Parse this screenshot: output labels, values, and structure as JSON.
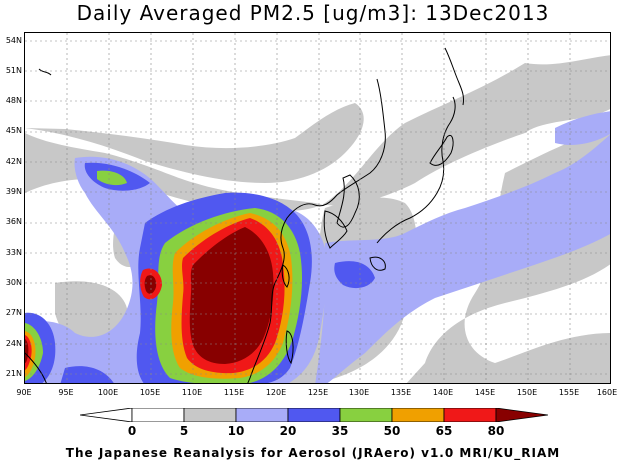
{
  "title": "Daily Averaged PM2.5 [ug/m3]: 13Dec2013",
  "footer": "The Japanese Reanalysis for Aerosol (JRAero) v1.0 MRI/KU_RIAM",
  "lat_labels": [
    "54N",
    "51N",
    "48N",
    "45N",
    "42N",
    "39N",
    "36N",
    "33N",
    "30N",
    "27N",
    "24N",
    "21N"
  ],
  "lon_labels": [
    "90E",
    "95E",
    "100E",
    "105E",
    "110E",
    "115E",
    "120E",
    "125E",
    "130E",
    "135E",
    "140E",
    "145E",
    "150E",
    "155E",
    "160E"
  ],
  "colorbar": {
    "ticks": [
      "0",
      "5",
      "10",
      "20",
      "35",
      "50",
      "65",
      "80"
    ],
    "colors": [
      "#ffffff",
      "#c8c8c8",
      "#a8acf8",
      "#5058f0",
      "#88d040",
      "#f0a000",
      "#f01818",
      "#880000"
    ]
  },
  "map": {
    "projection": "lat-lon",
    "lon_range": [
      90,
      160
    ],
    "lat_range": [
      20,
      55
    ],
    "variable": "PM2.5",
    "units": "ug/m3",
    "date": "13Dec2013"
  }
}
